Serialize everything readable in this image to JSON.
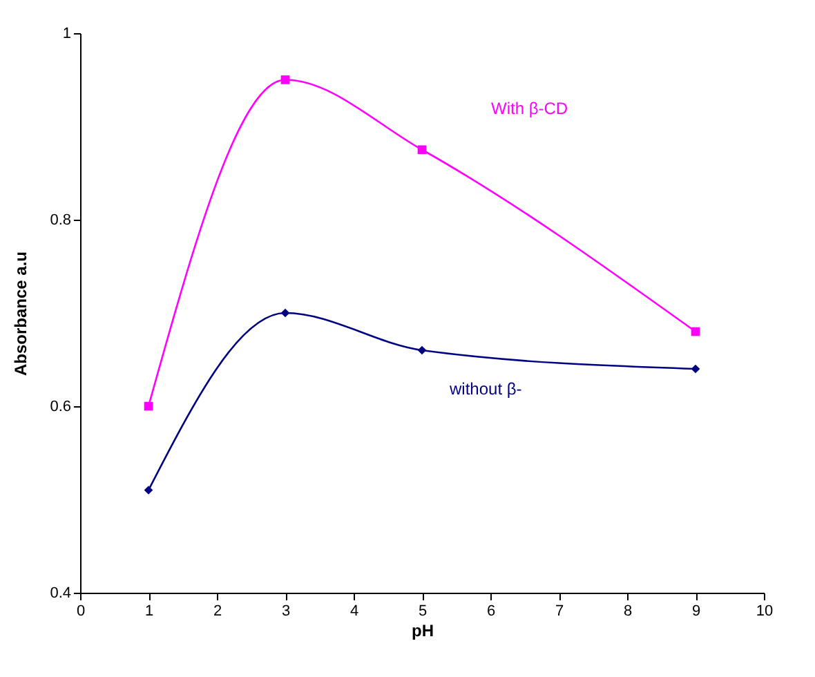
{
  "chart_data": {
    "type": "line",
    "xlabel": "pH",
    "ylabel": "Absorbance a.u",
    "x": [
      1,
      3,
      5,
      9
    ],
    "series": [
      {
        "name": "With β-CD",
        "color": "#ff00ff",
        "marker": "square",
        "values": [
          0.6,
          0.95,
          0.875,
          0.68
        ]
      },
      {
        "name": "without β-",
        "color": "#000080",
        "marker": "diamond",
        "values": [
          0.51,
          0.7,
          0.66,
          0.64
        ]
      }
    ],
    "xlim": [
      0,
      10
    ],
    "xticks": [
      0,
      1,
      2,
      3,
      4,
      5,
      6,
      7,
      8,
      9,
      10
    ],
    "ylim": [
      0.4,
      1
    ],
    "yticks": [
      0.4,
      0.6,
      0.8,
      1
    ],
    "grid": false,
    "line_style": "solid"
  }
}
